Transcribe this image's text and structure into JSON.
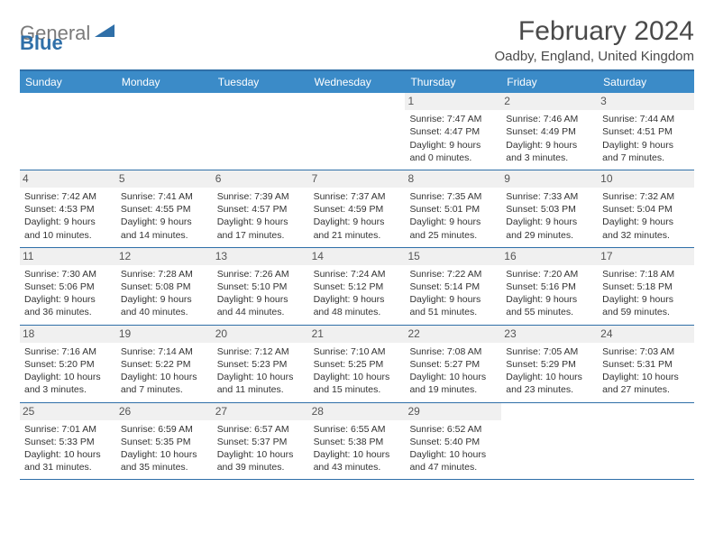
{
  "logo": {
    "text_gray": "General",
    "text_blue": "Blue"
  },
  "title": {
    "month": "February 2024",
    "location": "Oadby, England, United Kingdom"
  },
  "colors": {
    "header_bg": "#3b8bc8",
    "header_text": "#ffffff",
    "border": "#2f6fa8",
    "daynum_bg": "#f0f0f0",
    "text": "#333333"
  },
  "day_headers": [
    "Sunday",
    "Monday",
    "Tuesday",
    "Wednesday",
    "Thursday",
    "Friday",
    "Saturday"
  ],
  "weeks": [
    [
      {
        "n": "",
        "sr": "",
        "ss": "",
        "dl": ""
      },
      {
        "n": "",
        "sr": "",
        "ss": "",
        "dl": ""
      },
      {
        "n": "",
        "sr": "",
        "ss": "",
        "dl": ""
      },
      {
        "n": "",
        "sr": "",
        "ss": "",
        "dl": ""
      },
      {
        "n": "1",
        "sr": "Sunrise: 7:47 AM",
        "ss": "Sunset: 4:47 PM",
        "dl": "Daylight: 9 hours and 0 minutes."
      },
      {
        "n": "2",
        "sr": "Sunrise: 7:46 AM",
        "ss": "Sunset: 4:49 PM",
        "dl": "Daylight: 9 hours and 3 minutes."
      },
      {
        "n": "3",
        "sr": "Sunrise: 7:44 AM",
        "ss": "Sunset: 4:51 PM",
        "dl": "Daylight: 9 hours and 7 minutes."
      }
    ],
    [
      {
        "n": "4",
        "sr": "Sunrise: 7:42 AM",
        "ss": "Sunset: 4:53 PM",
        "dl": "Daylight: 9 hours and 10 minutes."
      },
      {
        "n": "5",
        "sr": "Sunrise: 7:41 AM",
        "ss": "Sunset: 4:55 PM",
        "dl": "Daylight: 9 hours and 14 minutes."
      },
      {
        "n": "6",
        "sr": "Sunrise: 7:39 AM",
        "ss": "Sunset: 4:57 PM",
        "dl": "Daylight: 9 hours and 17 minutes."
      },
      {
        "n": "7",
        "sr": "Sunrise: 7:37 AM",
        "ss": "Sunset: 4:59 PM",
        "dl": "Daylight: 9 hours and 21 minutes."
      },
      {
        "n": "8",
        "sr": "Sunrise: 7:35 AM",
        "ss": "Sunset: 5:01 PM",
        "dl": "Daylight: 9 hours and 25 minutes."
      },
      {
        "n": "9",
        "sr": "Sunrise: 7:33 AM",
        "ss": "Sunset: 5:03 PM",
        "dl": "Daylight: 9 hours and 29 minutes."
      },
      {
        "n": "10",
        "sr": "Sunrise: 7:32 AM",
        "ss": "Sunset: 5:04 PM",
        "dl": "Daylight: 9 hours and 32 minutes."
      }
    ],
    [
      {
        "n": "11",
        "sr": "Sunrise: 7:30 AM",
        "ss": "Sunset: 5:06 PM",
        "dl": "Daylight: 9 hours and 36 minutes."
      },
      {
        "n": "12",
        "sr": "Sunrise: 7:28 AM",
        "ss": "Sunset: 5:08 PM",
        "dl": "Daylight: 9 hours and 40 minutes."
      },
      {
        "n": "13",
        "sr": "Sunrise: 7:26 AM",
        "ss": "Sunset: 5:10 PM",
        "dl": "Daylight: 9 hours and 44 minutes."
      },
      {
        "n": "14",
        "sr": "Sunrise: 7:24 AM",
        "ss": "Sunset: 5:12 PM",
        "dl": "Daylight: 9 hours and 48 minutes."
      },
      {
        "n": "15",
        "sr": "Sunrise: 7:22 AM",
        "ss": "Sunset: 5:14 PM",
        "dl": "Daylight: 9 hours and 51 minutes."
      },
      {
        "n": "16",
        "sr": "Sunrise: 7:20 AM",
        "ss": "Sunset: 5:16 PM",
        "dl": "Daylight: 9 hours and 55 minutes."
      },
      {
        "n": "17",
        "sr": "Sunrise: 7:18 AM",
        "ss": "Sunset: 5:18 PM",
        "dl": "Daylight: 9 hours and 59 minutes."
      }
    ],
    [
      {
        "n": "18",
        "sr": "Sunrise: 7:16 AM",
        "ss": "Sunset: 5:20 PM",
        "dl": "Daylight: 10 hours and 3 minutes."
      },
      {
        "n": "19",
        "sr": "Sunrise: 7:14 AM",
        "ss": "Sunset: 5:22 PM",
        "dl": "Daylight: 10 hours and 7 minutes."
      },
      {
        "n": "20",
        "sr": "Sunrise: 7:12 AM",
        "ss": "Sunset: 5:23 PM",
        "dl": "Daylight: 10 hours and 11 minutes."
      },
      {
        "n": "21",
        "sr": "Sunrise: 7:10 AM",
        "ss": "Sunset: 5:25 PM",
        "dl": "Daylight: 10 hours and 15 minutes."
      },
      {
        "n": "22",
        "sr": "Sunrise: 7:08 AM",
        "ss": "Sunset: 5:27 PM",
        "dl": "Daylight: 10 hours and 19 minutes."
      },
      {
        "n": "23",
        "sr": "Sunrise: 7:05 AM",
        "ss": "Sunset: 5:29 PM",
        "dl": "Daylight: 10 hours and 23 minutes."
      },
      {
        "n": "24",
        "sr": "Sunrise: 7:03 AM",
        "ss": "Sunset: 5:31 PM",
        "dl": "Daylight: 10 hours and 27 minutes."
      }
    ],
    [
      {
        "n": "25",
        "sr": "Sunrise: 7:01 AM",
        "ss": "Sunset: 5:33 PM",
        "dl": "Daylight: 10 hours and 31 minutes."
      },
      {
        "n": "26",
        "sr": "Sunrise: 6:59 AM",
        "ss": "Sunset: 5:35 PM",
        "dl": "Daylight: 10 hours and 35 minutes."
      },
      {
        "n": "27",
        "sr": "Sunrise: 6:57 AM",
        "ss": "Sunset: 5:37 PM",
        "dl": "Daylight: 10 hours and 39 minutes."
      },
      {
        "n": "28",
        "sr": "Sunrise: 6:55 AM",
        "ss": "Sunset: 5:38 PM",
        "dl": "Daylight: 10 hours and 43 minutes."
      },
      {
        "n": "29",
        "sr": "Sunrise: 6:52 AM",
        "ss": "Sunset: 5:40 PM",
        "dl": "Daylight: 10 hours and 47 minutes."
      },
      {
        "n": "",
        "sr": "",
        "ss": "",
        "dl": ""
      },
      {
        "n": "",
        "sr": "",
        "ss": "",
        "dl": ""
      }
    ]
  ]
}
